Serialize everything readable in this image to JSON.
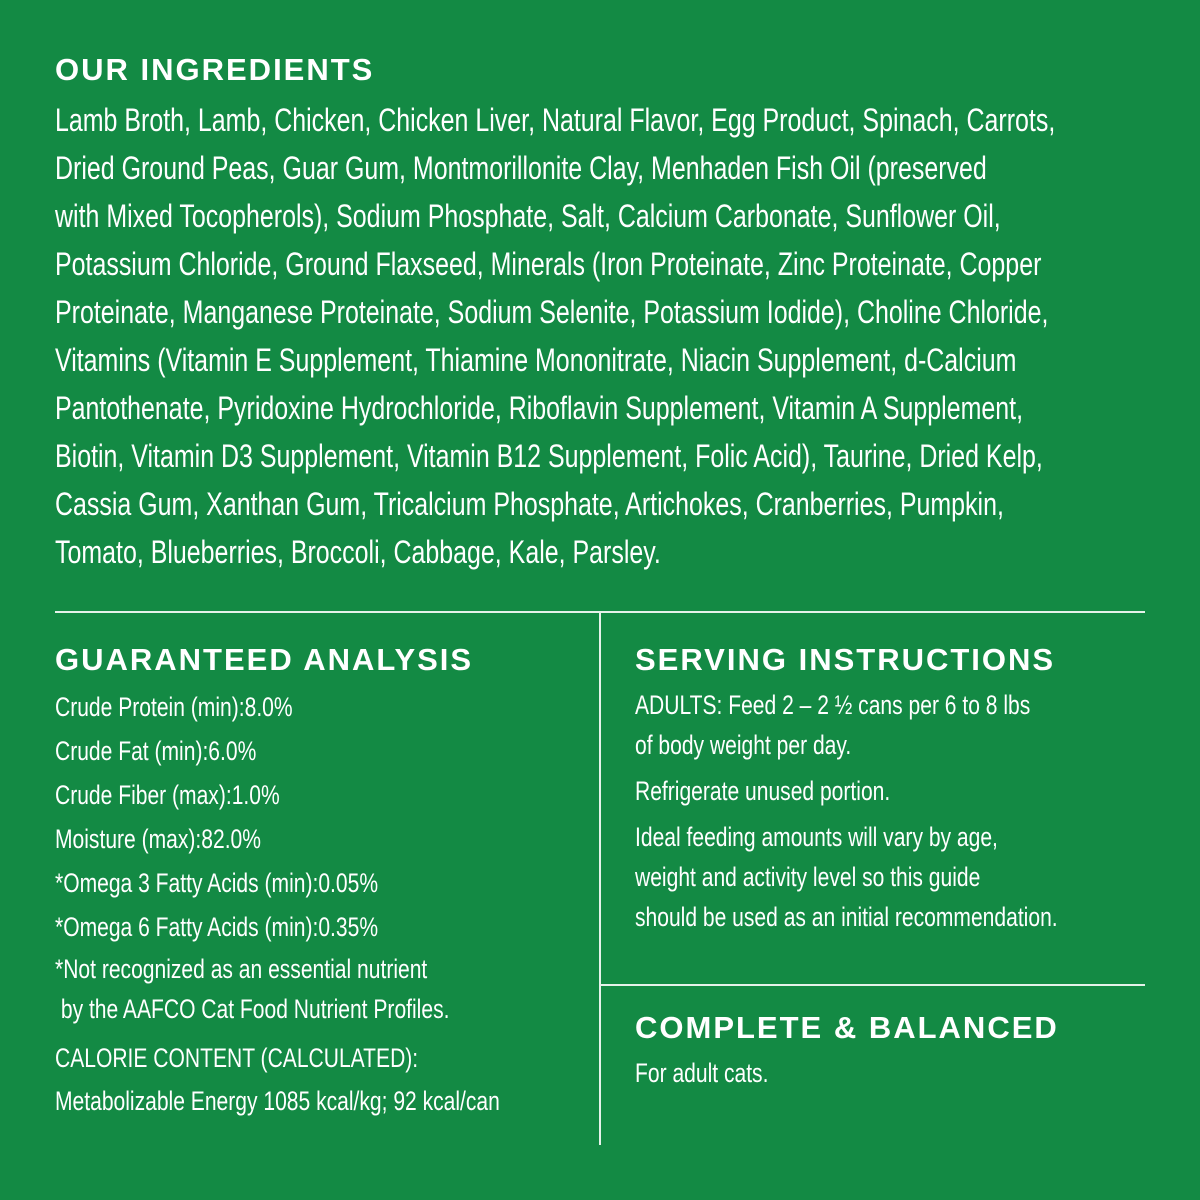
{
  "colors": {
    "background": "#138a44",
    "text": "#ffffff"
  },
  "ingredients": {
    "title": "OUR INGREDIENTS",
    "lines": [
      "Lamb Broth, Lamb, Chicken, Chicken Liver, Natural Flavor, Egg Product, Spinach, Carrots,",
      "Dried Ground Peas, Guar Gum, Montmorillonite Clay, Menhaden Fish Oil (preserved",
      "with Mixed Tocopherols), Sodium Phosphate, Salt, Calcium Carbonate, Sunflower Oil,",
      "Potassium Chloride, Ground Flaxseed, Minerals (Iron Proteinate, Zinc Proteinate, Copper",
      "Proteinate, Manganese Proteinate, Sodium Selenite, Potassium Iodide), Choline Chloride,",
      "Vitamins (Vitamin E Supplement, Thiamine Mononitrate, Niacin Supplement, d-Calcium",
      "Pantothenate, Pyridoxine Hydrochloride, Riboflavin Supplement, Vitamin A Supplement,",
      "Biotin, Vitamin D3 Supplement, Vitamin B12 Supplement, Folic Acid), Taurine, Dried Kelp,",
      "Cassia Gum, Xanthan Gum, Tricalcium Phosphate, Artichokes, Cranberries, Pumpkin,",
      "Tomato, Blueberries, Broccoli, Cabbage, Kale, Parsley."
    ]
  },
  "analysis": {
    "title": "GUARANTEED ANALYSIS",
    "rows": [
      {
        "label": "Crude Protein (min):",
        "value": "8.0%"
      },
      {
        "label": "Crude Fat (min):",
        "value": "6.0%"
      },
      {
        "label": "Crude Fiber (max):",
        "value": "1.0%"
      },
      {
        "label": "Moisture (max):",
        "value": "82.0%"
      },
      {
        "label": "*Omega 3 Fatty Acids (min):",
        "value": "0.05%"
      },
      {
        "label": "*Omega 6 Fatty Acids (min):",
        "value": "0.35%"
      }
    ],
    "note": [
      "*Not recognized as an essential nutrient",
      " by the AAFCO Cat Food Nutrient Profiles."
    ],
    "calorie": [
      "CALORIE CONTENT (CALCULATED):",
      "Metabolizable Energy 1085 kcal/kg; 92 kcal/can"
    ]
  },
  "serving": {
    "title": "SERVING INSTRUCTIONS",
    "p1": [
      "ADULTS: Feed 2 – 2 ½ cans per 6 to 8 lbs",
      "of body weight per day."
    ],
    "p2": "Refrigerate unused portion.",
    "p3": [
      "Ideal feeding amounts will vary by age,",
      "weight and activity level so this guide",
      "should be used as an initial recommendation."
    ]
  },
  "complete": {
    "title": "COMPLETE & BALANCED",
    "text": "For adult cats."
  }
}
